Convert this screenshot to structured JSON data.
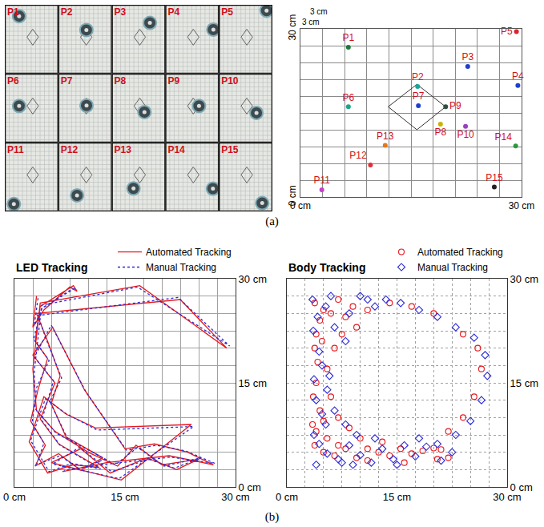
{
  "panel_labels": [
    "(a)",
    "(b)"
  ],
  "chart_data": [
    {
      "type": "scatter",
      "labels": [
        "P1",
        "P2",
        "P3",
        "P4",
        "P5",
        "P6",
        "P7",
        "P8",
        "P9",
        "P10",
        "P11",
        "P12",
        "P13",
        "P14",
        "P15"
      ],
      "x": [
        6.5,
        15.9,
        22.7,
        29.5,
        29.3,
        6.5,
        16.0,
        19.0,
        19.7,
        22.4,
        2.9,
        9.5,
        11.5,
        29.2,
        26.3
      ],
      "y": [
        26.7,
        19.7,
        23.3,
        19.9,
        29.5,
        16.1,
        16.3,
        13.0,
        16.1,
        12.6,
        1.3,
        5.7,
        9.2,
        9.1,
        1.8
      ],
      "colors": [
        "#1b7a3a",
        "#1aa59a",
        "#1f3fd0",
        "#1f3fd0",
        "#e0202a",
        "#1fa58a",
        "#1f3fd0",
        "#c8b400",
        "#2f4f3f",
        "#9b3fbf",
        "#c83fc8",
        "#e0303a",
        "#e07a20",
        "#2a9a3a",
        "#222222"
      ],
      "outline": {
        "x": [
          15.8,
          19.7,
          15.8,
          11.9,
          15.8
        ],
        "y": [
          20.1,
          16.1,
          12.0,
          16.1,
          20.1
        ]
      },
      "annotations": [
        "3 cm",
        "3 cm"
      ],
      "xlim": [
        0,
        30
      ],
      "ylim": [
        0,
        30
      ],
      "xticks": [
        {
          "value": 0,
          "label": "0 cm"
        },
        {
          "value": 3,
          "label": null
        },
        {
          "value": 6,
          "label": null
        },
        {
          "value": 9,
          "label": null
        },
        {
          "value": 12,
          "label": null
        },
        {
          "value": 15,
          "label": null
        },
        {
          "value": 18,
          "label": null
        },
        {
          "value": 21,
          "label": null
        },
        {
          "value": 24,
          "label": null
        },
        {
          "value": 27,
          "label": null
        },
        {
          "value": 30,
          "label": "30 cm"
        }
      ],
      "yticks": [
        {
          "value": 0,
          "label": "0 cm"
        },
        {
          "value": 3,
          "label": null
        },
        {
          "value": 6,
          "label": null
        },
        {
          "value": 9,
          "label": null
        },
        {
          "value": 12,
          "label": null
        },
        {
          "value": 15,
          "label": null
        },
        {
          "value": 18,
          "label": null
        },
        {
          "value": 21,
          "label": null
        },
        {
          "value": 24,
          "label": null
        },
        {
          "value": 27,
          "label": null
        },
        {
          "value": 30,
          "label": "30 cm"
        }
      ],
      "grid": true
    },
    {
      "type": "line",
      "title": "LED Tracking",
      "series": [
        {
          "name": "Automated Tracking",
          "color": "#e8171b",
          "line_style": "solid",
          "x": [
            3.0,
            2.5,
            4.0,
            7.5,
            8.5,
            8.0,
            3.5,
            2.8,
            4.5,
            3.2,
            2.2,
            4.2,
            2.8,
            6.0,
            9.0,
            12.0,
            7.0,
            5.0,
            6.2,
            4.5,
            3.0,
            22.5,
            28.8,
            17.0,
            3.5,
            2.5,
            3.0,
            5.5,
            10.0,
            14.0,
            16.5,
            20.0,
            25.0,
            22.0,
            18.0,
            13.0,
            9.0,
            5.0,
            14.5,
            24.0,
            11.0,
            7.0,
            4.0,
            2.0,
            4.5,
            8.0,
            11.5,
            6.0,
            3.5,
            5.5,
            2.5,
            5.2,
            9.5,
            15.0,
            19.0,
            23.5,
            27.0,
            21.0,
            12.5,
            6.5
          ],
          "y": [
            27.5,
            23.0,
            25.5,
            28.8,
            28.2,
            29.0,
            26.0,
            21.0,
            18.5,
            14.0,
            9.5,
            6.0,
            3.0,
            4.8,
            2.4,
            4.2,
            7.2,
            12.0,
            16.0,
            21.0,
            25.0,
            27.0,
            20.0,
            29.0,
            26.5,
            17.0,
            11.0,
            8.0,
            5.0,
            3.0,
            6.0,
            3.2,
            4.0,
            2.5,
            4.2,
            2.0,
            5.5,
            3.5,
            1.0,
            9.0,
            8.5,
            10.5,
            13.0,
            6.5,
            2.0,
            3.2,
            2.8,
            6.2,
            9.8,
            15.0,
            19.0,
            23.0,
            14.0,
            5.5,
            6.2,
            5.0,
            3.2,
            4.5,
            3.5,
            2.2
          ]
        },
        {
          "name": "Manual Tracking",
          "color": "#2b2bd6",
          "line_style": "dotted",
          "x": [
            3.2,
            2.7,
            3.8,
            7.8,
            8.3,
            8.3,
            3.7,
            2.6,
            4.7,
            3.0,
            2.4,
            4.0,
            3.0,
            6.2,
            8.8,
            12.3,
            7.2,
            4.8,
            6.4,
            4.3,
            3.2,
            22.2,
            29.2,
            16.7,
            3.7,
            2.7,
            2.8,
            5.7,
            10.3,
            13.7,
            16.7,
            20.3,
            25.3,
            21.7,
            18.2,
            13.2,
            8.8,
            5.2,
            14.2,
            24.3,
            11.2,
            6.8,
            4.2,
            2.2,
            4.7,
            7.8,
            11.7,
            6.2,
            3.7,
            5.3,
            2.7,
            5.0,
            9.7,
            15.2,
            19.3,
            23.2,
            27.2,
            21.2,
            12.7,
            6.7
          ],
          "y": [
            27.2,
            23.3,
            25.8,
            28.5,
            28.6,
            28.7,
            25.7,
            21.3,
            18.2,
            14.3,
            9.2,
            6.3,
            3.2,
            4.5,
            2.6,
            4.0,
            7.0,
            12.3,
            15.7,
            21.3,
            24.7,
            27.3,
            20.3,
            28.8,
            26.2,
            16.7,
            11.3,
            7.7,
            5.2,
            3.2,
            5.7,
            3.0,
            4.2,
            2.7,
            4.0,
            2.2,
            5.7,
            3.3,
            1.2,
            8.7,
            8.2,
            10.7,
            12.7,
            6.7,
            2.2,
            3.4,
            2.6,
            6.0,
            9.6,
            15.3,
            18.7,
            23.3,
            13.7,
            5.3,
            6.0,
            5.2,
            3.4,
            4.3,
            3.3,
            2.4
          ]
        }
      ],
      "xlim": [
        0,
        30
      ],
      "ylim": [
        0,
        30
      ],
      "xticks": [
        {
          "value": 0,
          "label": "0 cm"
        },
        {
          "value": 2.5,
          "label": null
        },
        {
          "value": 5,
          "label": null
        },
        {
          "value": 7.5,
          "label": null
        },
        {
          "value": 10,
          "label": null
        },
        {
          "value": 12.5,
          "label": null
        },
        {
          "value": 15,
          "label": "15 cm"
        },
        {
          "value": 17.5,
          "label": null
        },
        {
          "value": 20,
          "label": null
        },
        {
          "value": 22.5,
          "label": null
        },
        {
          "value": 25,
          "label": null
        },
        {
          "value": 27.5,
          "label": null
        },
        {
          "value": 30,
          "label": "30 cm"
        }
      ],
      "yticks": [
        {
          "value": 0,
          "label": "0 cm"
        },
        {
          "value": 2.5,
          "label": null
        },
        {
          "value": 5,
          "label": null
        },
        {
          "value": 7.5,
          "label": null
        },
        {
          "value": 10,
          "label": null
        },
        {
          "value": 12.5,
          "label": null
        },
        {
          "value": 15,
          "label": "15 cm"
        },
        {
          "value": 17.5,
          "label": null
        },
        {
          "value": 20,
          "label": null
        },
        {
          "value": 22.5,
          "label": null
        },
        {
          "value": 25,
          "label": null
        },
        {
          "value": 27.5,
          "label": null
        },
        {
          "value": 30,
          "label": "30 cm"
        }
      ],
      "grid": true,
      "legend": "top right"
    },
    {
      "type": "scatter",
      "title": "Body Tracking",
      "series": [
        {
          "name": "Automated Tracking",
          "color": "#e8171b",
          "marker": "circle-open",
          "x": [
            4.5,
            5.0,
            4.0,
            3.8,
            4.2,
            5.5,
            4.0,
            3.6,
            4.5,
            5.0,
            4.0,
            3.8,
            5.0,
            6.5,
            8.0,
            9.5,
            11.0,
            12.5,
            14.0,
            15.5,
            17.0,
            18.5,
            20.0,
            21.0,
            22.0,
            20.5,
            16.0,
            13.0,
            10.0,
            8.5,
            7.0,
            6.0,
            7.5,
            8.0,
            9.0,
            7.0,
            6.0,
            9.5,
            6.5,
            5.5,
            7.0,
            11.0,
            24.0,
            26.0,
            26.5,
            25.5,
            24.0,
            22.0,
            20.0,
            17.0,
            14.0,
            11.0,
            3.8,
            4.8,
            3.5
          ],
          "y": [
            24.0,
            25.5,
            22.0,
            20.0,
            18.0,
            17.0,
            15.0,
            13.0,
            11.0,
            9.5,
            8.0,
            6.0,
            5.0,
            4.5,
            5.5,
            4.2,
            3.8,
            5.0,
            4.5,
            5.5,
            4.8,
            5.2,
            5.6,
            5.4,
            4.2,
            4.0,
            3.5,
            6.5,
            7.0,
            8.5,
            10.0,
            13.0,
            22.0,
            24.5,
            26.0,
            27.0,
            25.0,
            23.0,
            20.0,
            7.0,
            6.0,
            5.5,
            22.0,
            20.0,
            17.0,
            13.0,
            10.0,
            8.0,
            25.0,
            26.0,
            26.5,
            25.5,
            26.5,
            21.0,
            9.0
          ]
        },
        {
          "name": "Manual Tracking",
          "color": "#2b2bd6",
          "marker": "diamond-open",
          "x": [
            4.2,
            5.3,
            3.6,
            4.4,
            4.8,
            5.8,
            3.7,
            4.0,
            4.8,
            5.3,
            3.7,
            4.4,
            5.5,
            7.0,
            8.5,
            10.0,
            11.5,
            13.0,
            14.5,
            16.0,
            17.5,
            19.0,
            20.5,
            22.5,
            21.0,
            15.0,
            12.0,
            9.5,
            8.0,
            6.5,
            5.5,
            8.0,
            10.0,
            11.0,
            8.5,
            6.0,
            12.0,
            13.5,
            15.5,
            18.0,
            20.5,
            23.0,
            25.5,
            27.0,
            27.3,
            26.5,
            25.0,
            23.0,
            18.0,
            7.5,
            4.0,
            3.5,
            6.5,
            9.0
          ],
          "y": [
            24.5,
            26.0,
            22.5,
            19.5,
            17.5,
            16.0,
            15.5,
            12.5,
            10.5,
            9.0,
            7.5,
            6.2,
            4.8,
            4.0,
            6.0,
            4.6,
            3.5,
            5.5,
            4.0,
            6.0,
            4.4,
            5.8,
            6.2,
            5.0,
            3.8,
            3.2,
            7.0,
            7.5,
            9.0,
            11.0,
            14.0,
            21.0,
            27.5,
            27.0,
            25.0,
            27.5,
            26.0,
            27.0,
            26.5,
            25.5,
            24.5,
            23.0,
            21.5,
            19.0,
            16.0,
            12.5,
            9.5,
            7.5,
            7.0,
            3.5,
            3.2,
            27.0,
            23.0,
            3.2
          ]
        }
      ],
      "xlim": [
        0,
        30
      ],
      "ylim": [
        0,
        30
      ],
      "xticks": [
        {
          "value": 0,
          "label": "0 cm"
        },
        {
          "value": 2.5,
          "label": null
        },
        {
          "value": 5,
          "label": null
        },
        {
          "value": 7.5,
          "label": null
        },
        {
          "value": 10,
          "label": null
        },
        {
          "value": 12.5,
          "label": null
        },
        {
          "value": 15,
          "label": "15 cm"
        },
        {
          "value": 17.5,
          "label": null
        },
        {
          "value": 20,
          "label": null
        },
        {
          "value": 22.5,
          "label": null
        },
        {
          "value": 25,
          "label": null
        },
        {
          "value": 27.5,
          "label": null
        },
        {
          "value": 30,
          "label": "30 cm"
        }
      ],
      "yticks": [
        {
          "value": 0,
          "label": "0 cm"
        },
        {
          "value": 2.5,
          "label": null
        },
        {
          "value": 5,
          "label": null
        },
        {
          "value": 7.5,
          "label": null
        },
        {
          "value": 10,
          "label": null
        },
        {
          "value": 12.5,
          "label": null
        },
        {
          "value": 15,
          "label": "15 cm"
        },
        {
          "value": 17.5,
          "label": null
        },
        {
          "value": 20,
          "label": null
        },
        {
          "value": 22.5,
          "label": null
        },
        {
          "value": 25,
          "label": null
        },
        {
          "value": 27.5,
          "label": null
        },
        {
          "value": 30,
          "label": "30 cm"
        }
      ],
      "grid": true,
      "legend": "top right"
    }
  ]
}
